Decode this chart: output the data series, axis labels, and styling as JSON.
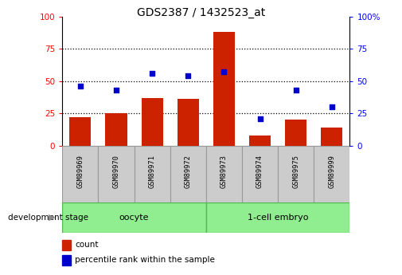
{
  "title": "GDS2387 / 1432523_at",
  "samples": [
    "GSM89969",
    "GSM89970",
    "GSM89971",
    "GSM89972",
    "GSM89973",
    "GSM89974",
    "GSM89975",
    "GSM89999"
  ],
  "counts": [
    22,
    25,
    37,
    36,
    88,
    8,
    20,
    14
  ],
  "percentiles": [
    46,
    43,
    56,
    54,
    57,
    21,
    43,
    30
  ],
  "bar_color": "#CC2200",
  "dot_color": "#0000CC",
  "stage_label": "development stage",
  "legend_count": "count",
  "legend_percentile": "percentile rank within the sample",
  "group_split_idx": 4,
  "oocyte_label": "oocyte",
  "embryo_label": "1-cell embryo",
  "group_color": "#90EE90",
  "group_border_color": "#55BB55",
  "sample_box_color": "#CCCCCC",
  "sample_box_border": "#999999"
}
